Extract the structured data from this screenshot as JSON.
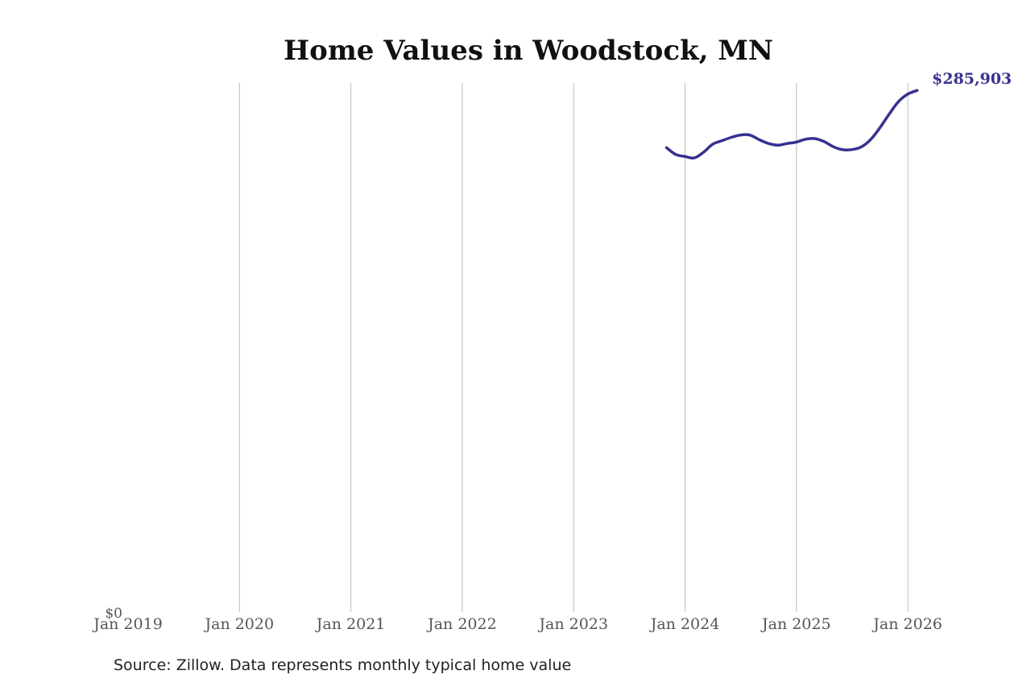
{
  "chart_data": {
    "type": "line",
    "title": "Home Values in Woodstock, MN",
    "xlabel": "",
    "ylabel": "",
    "x_ticks": [
      "Jan 2019",
      "Jan 2020",
      "Jan 2021",
      "Jan 2022",
      "Jan 2023",
      "Jan 2024",
      "Jan 2025",
      "Jan 2026"
    ],
    "y_ticks": [
      "$0"
    ],
    "ylim": [
      0,
      290000
    ],
    "grid": "vertical",
    "line_color": "#36318f",
    "series": [
      {
        "x": [
          "2023-11",
          "2023-12",
          "2024-01",
          "2024-02",
          "2024-03",
          "2024-04",
          "2024-05",
          "2024-06",
          "2024-07",
          "2024-08",
          "2024-09",
          "2024-10",
          "2024-11",
          "2024-12",
          "2025-01",
          "2025-02",
          "2025-03",
          "2025-04",
          "2025-05",
          "2025-06",
          "2025-07",
          "2025-08",
          "2025-09",
          "2025-10",
          "2025-11",
          "2025-12",
          "2026-01",
          "2026-02"
        ],
        "values": [
          254500,
          250800,
          249700,
          248900,
          252100,
          256500,
          258400,
          260200,
          261500,
          261400,
          258900,
          256800,
          255900,
          256800,
          257600,
          259200,
          259500,
          257800,
          255000,
          253400,
          253500,
          255000,
          259000,
          265500,
          273000,
          279800,
          283900,
          285903
        ]
      }
    ],
    "end_label": "$285,903",
    "source_text": "Source: Zillow. Data represents monthly typical home value"
  }
}
